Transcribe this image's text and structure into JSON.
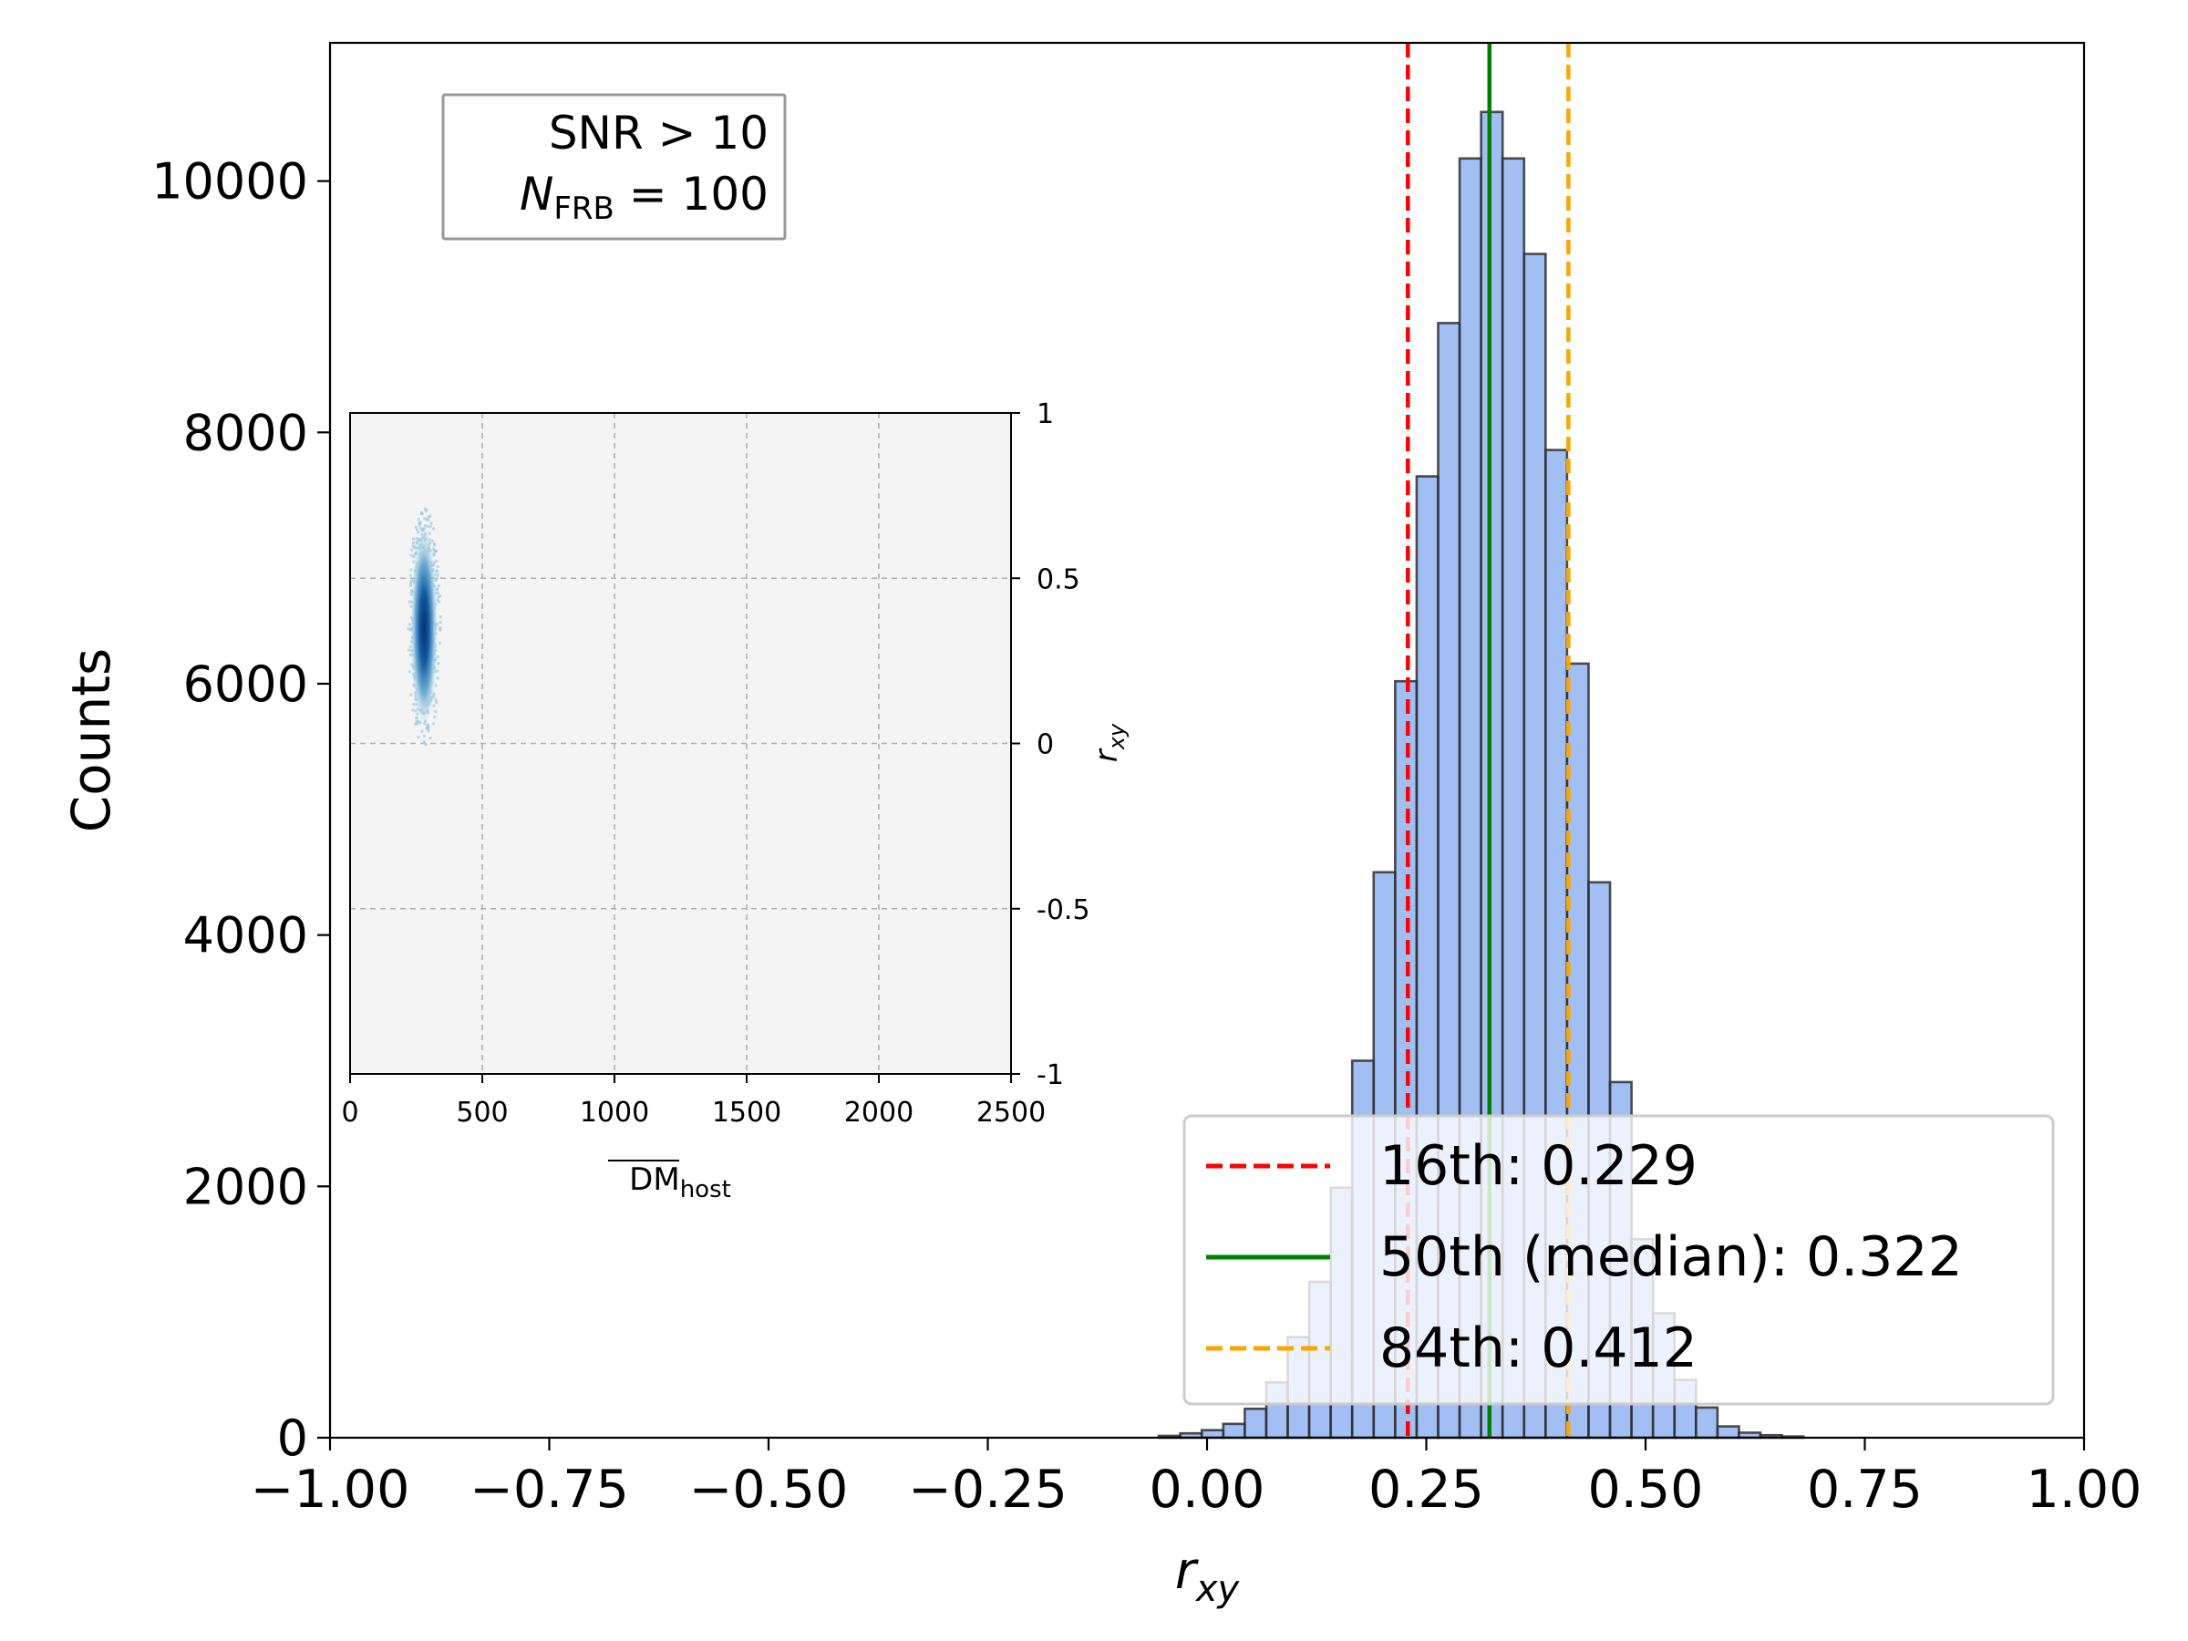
{
  "chart_data": [
    {
      "type": "bar",
      "subtype": "histogram",
      "xlabel_main": "r",
      "xlabel_sub": "xy",
      "ylabel": "Counts",
      "xlim": [
        -1.0,
        1.0
      ],
      "ylim": [
        0,
        11100
      ],
      "x_ticks": [
        -1.0,
        -0.75,
        -0.5,
        -0.25,
        0.0,
        0.25,
        0.5,
        0.75,
        1.0
      ],
      "x_tick_labels": [
        "−1.00",
        "−0.75",
        "−0.50",
        "−0.25",
        "0.00",
        "0.25",
        "0.50",
        "0.75",
        "1.00"
      ],
      "y_ticks": [
        0,
        2000,
        4000,
        6000,
        8000,
        10000
      ],
      "y_tick_labels": [
        "0",
        "2000",
        "4000",
        "6000",
        "8000",
        "10000"
      ],
      "bin_width": 0.0245,
      "bins": [
        {
          "x0": -0.055,
          "count": 15
        },
        {
          "x0": -0.0305,
          "count": 35
        },
        {
          "x0": -0.006,
          "count": 60
        },
        {
          "x0": 0.0185,
          "count": 110
        },
        {
          "x0": 0.043,
          "count": 230
        },
        {
          "x0": 0.0675,
          "count": 440
        },
        {
          "x0": 0.092,
          "count": 800
        },
        {
          "x0": 0.1165,
          "count": 1240
        },
        {
          "x0": 0.141,
          "count": 1990
        },
        {
          "x0": 0.1655,
          "count": 3000
        },
        {
          "x0": 0.19,
          "count": 4500
        },
        {
          "x0": 0.2145,
          "count": 6020
        },
        {
          "x0": 0.239,
          "count": 7650
        },
        {
          "x0": 0.2635,
          "count": 8870
        },
        {
          "x0": 0.288,
          "count": 10180
        },
        {
          "x0": 0.3125,
          "count": 10550
        },
        {
          "x0": 0.337,
          "count": 10180
        },
        {
          "x0": 0.3615,
          "count": 9420
        },
        {
          "x0": 0.386,
          "count": 7860
        },
        {
          "x0": 0.4105,
          "count": 6160
        },
        {
          "x0": 0.435,
          "count": 4420
        },
        {
          "x0": 0.4595,
          "count": 2830
        },
        {
          "x0": 0.484,
          "count": 1580
        },
        {
          "x0": 0.5085,
          "count": 990
        },
        {
          "x0": 0.533,
          "count": 460
        },
        {
          "x0": 0.5575,
          "count": 240
        },
        {
          "x0": 0.582,
          "count": 90
        },
        {
          "x0": 0.6065,
          "count": 40
        },
        {
          "x0": 0.631,
          "count": 20
        },
        {
          "x0": 0.6555,
          "count": 10
        }
      ],
      "percentiles": [
        {
          "name": "16th",
          "value": 0.229,
          "legend": "16th: 0.229",
          "color": "#ff0000",
          "style": "dashed"
        },
        {
          "name": "50th",
          "value": 0.322,
          "legend": "50th (median): 0.322",
          "color": "#008000",
          "style": "solid"
        },
        {
          "name": "84th",
          "value": 0.412,
          "legend": "84th: 0.412",
          "color": "#ffa500",
          "style": "dashed"
        }
      ],
      "bar_color": "#6495ed",
      "legend_position": "lower-right",
      "annotation": {
        "line1": "SNR > 10",
        "line2_symbol": "N",
        "line2_sub": "FRB",
        "line2_value": " = 100",
        "position": "top-left"
      }
    },
    {
      "type": "heatmap",
      "inset": true,
      "position": "left-middle",
      "xlabel": "DM",
      "xlabel_sub": "host",
      "ylabel_main": "r",
      "ylabel_sub": "xy",
      "xlim": [
        0,
        2500
      ],
      "ylim": [
        -1,
        1
      ],
      "x_ticks": [
        0,
        500,
        1000,
        1500,
        2000,
        2500
      ],
      "x_tick_labels": [
        "0",
        "500",
        "1000",
        "1500",
        "2000",
        "2500"
      ],
      "y_ticks": [
        1,
        0.5,
        0,
        -0.5,
        -1
      ],
      "y_tick_labels": [
        "1",
        "0.5",
        "0",
        "-0.5",
        "-1"
      ],
      "grid": true,
      "density_peak": {
        "x": 280,
        "y": 0.35
      },
      "density_spread": {
        "x": 55,
        "y": 0.16
      },
      "background_color": "#f4f4f4",
      "colormap": "Blues"
    }
  ]
}
